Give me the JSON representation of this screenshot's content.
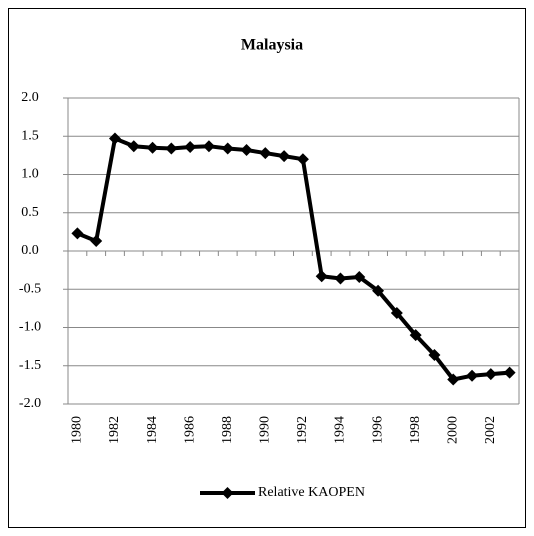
{
  "chart_data": {
    "type": "line",
    "title": "Malaysia",
    "categories": [
      "1980",
      null,
      "1982",
      null,
      "1984",
      null,
      "1986",
      null,
      "1988",
      null,
      "1990",
      null,
      "1992",
      null,
      "1994",
      null,
      "1996",
      null,
      "1998",
      null,
      "2000",
      null,
      "2002",
      null
    ],
    "series": [
      {
        "name": "Relative KAOPEN",
        "color": "#000000",
        "values": [
          0.23,
          0.13,
          1.47,
          1.37,
          1.35,
          1.34,
          1.36,
          1.37,
          1.34,
          1.32,
          1.28,
          1.24,
          1.2,
          -0.33,
          -0.36,
          -0.34,
          -0.52,
          -0.81,
          -1.1,
          -1.36,
          -1.68,
          -1.63,
          -1.61,
          -1.59
        ]
      }
    ],
    "ylim": [
      -2,
      2
    ],
    "yticks": [
      {
        "value": -2,
        "label": "-2.0"
      },
      -1.5,
      {
        "value": -1,
        "label": "-1.0"
      },
      -0.5,
      {
        "value": 0,
        "label": "0.0"
      },
      0.5,
      {
        "value": 1,
        "label": "1.0"
      },
      1.5,
      {
        "value": 2,
        "label": "2.0"
      }
    ],
    "grid": true,
    "legend": "bottom"
  }
}
